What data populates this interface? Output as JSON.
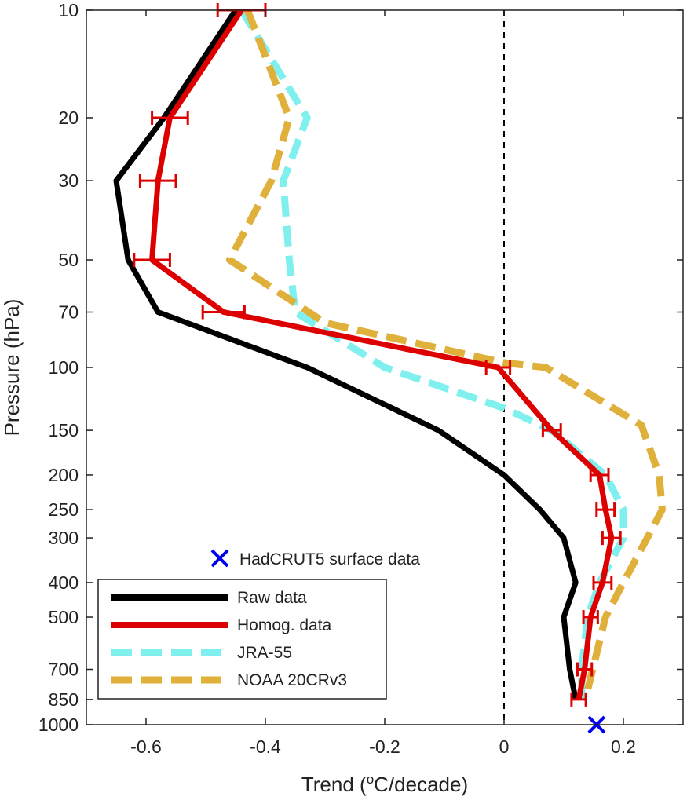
{
  "chart_data": {
    "type": "line",
    "xlabel_prefix": "Trend (",
    "xlabel_sup": "o",
    "xlabel_suffix": "C/decade)",
    "ylabel": "Pressure (hPa)",
    "xlim": [
      -0.7,
      0.3
    ],
    "ylim": [
      10,
      1000
    ],
    "y_scale": "log",
    "y_reversed": true,
    "x_ticks": [
      -0.6,
      -0.4,
      -0.2,
      0,
      0.2
    ],
    "x_tick_labels": [
      "-0.6",
      "-0.4",
      "-0.2",
      "0",
      "0.2"
    ],
    "y_ticks": [
      10,
      20,
      30,
      50,
      70,
      100,
      150,
      200,
      250,
      300,
      400,
      500,
      700,
      850,
      1000
    ],
    "y_tick_labels": [
      "10",
      "20",
      "30",
      "50",
      "70",
      "100",
      "150",
      "200",
      "250",
      "300",
      "400",
      "500",
      "700",
      "850",
      "1000"
    ],
    "zero_line": {
      "x": 0,
      "style": "dashed"
    },
    "grid": false,
    "legend_position": "bottom-left",
    "series": [
      {
        "name": "Raw data",
        "color": "#000000",
        "style": "solid",
        "points": [
          {
            "x": -0.45,
            "p": 10
          },
          {
            "x": -0.57,
            "p": 20
          },
          {
            "x": -0.65,
            "p": 30
          },
          {
            "x": -0.63,
            "p": 50
          },
          {
            "x": -0.58,
            "p": 70
          },
          {
            "x": -0.33,
            "p": 100
          },
          {
            "x": -0.11,
            "p": 150
          },
          {
            "x": 0.0,
            "p": 200
          },
          {
            "x": 0.06,
            "p": 250
          },
          {
            "x": 0.1,
            "p": 300
          },
          {
            "x": 0.12,
            "p": 400
          },
          {
            "x": 0.1,
            "p": 500
          },
          {
            "x": 0.11,
            "p": 700
          },
          {
            "x": 0.12,
            "p": 850
          }
        ]
      },
      {
        "name": "Homog. data",
        "color": "#dd0000",
        "style": "solid",
        "points": [
          {
            "x": -0.44,
            "p": 10,
            "err": 0.04
          },
          {
            "x": -0.56,
            "p": 20,
            "err": 0.03
          },
          {
            "x": -0.58,
            "p": 30,
            "err": 0.03
          },
          {
            "x": -0.59,
            "p": 50,
            "err": 0.03
          },
          {
            "x": -0.47,
            "p": 70,
            "err": 0.035
          },
          {
            "x": -0.01,
            "p": 100,
            "err": 0.02
          },
          {
            "x": 0.08,
            "p": 150,
            "err": 0.015
          },
          {
            "x": 0.16,
            "p": 200,
            "err": 0.015
          },
          {
            "x": 0.17,
            "p": 250,
            "err": 0.015
          },
          {
            "x": 0.18,
            "p": 300,
            "err": 0.015
          },
          {
            "x": 0.165,
            "p": 400,
            "err": 0.015
          },
          {
            "x": 0.145,
            "p": 500,
            "err": 0.012
          },
          {
            "x": 0.135,
            "p": 700,
            "err": 0.012
          },
          {
            "x": 0.125,
            "p": 850,
            "err": 0.012
          }
        ]
      },
      {
        "name": "JRA-55",
        "color": "#7ff0ee",
        "style": "dashed",
        "points": [
          {
            "x": -0.44,
            "p": 10
          },
          {
            "x": -0.33,
            "p": 20
          },
          {
            "x": -0.37,
            "p": 30
          },
          {
            "x": -0.36,
            "p": 50
          },
          {
            "x": -0.35,
            "p": 70
          },
          {
            "x": -0.2,
            "p": 100
          },
          {
            "x": 0.0,
            "p": 130
          },
          {
            "x": 0.08,
            "p": 150
          },
          {
            "x": 0.17,
            "p": 200
          },
          {
            "x": 0.2,
            "p": 250
          },
          {
            "x": 0.2,
            "p": 300
          },
          {
            "x": 0.16,
            "p": 400
          },
          {
            "x": 0.14,
            "p": 500
          },
          {
            "x": 0.13,
            "p": 700
          },
          {
            "x": 0.13,
            "p": 850
          }
        ]
      },
      {
        "name": "NOAA 20CRv3",
        "color": "#dfb03a",
        "style": "dashed",
        "points": [
          {
            "x": -0.43,
            "p": 10
          },
          {
            "x": -0.36,
            "p": 20
          },
          {
            "x": -0.39,
            "p": 30
          },
          {
            "x": -0.46,
            "p": 50
          },
          {
            "x": -0.3,
            "p": 75
          },
          {
            "x": 0.0,
            "p": 97
          },
          {
            "x": 0.07,
            "p": 100
          },
          {
            "x": 0.23,
            "p": 145
          },
          {
            "x": 0.26,
            "p": 200
          },
          {
            "x": 0.265,
            "p": 250
          },
          {
            "x": 0.24,
            "p": 300
          },
          {
            "x": 0.2,
            "p": 400
          },
          {
            "x": 0.17,
            "p": 500
          },
          {
            "x": 0.14,
            "p": 800
          }
        ]
      }
    ],
    "markers": [
      {
        "name": "HadCRUT5 surface data",
        "color": "#0000ee",
        "symbol": "x",
        "x": 0.155,
        "p": 1000
      }
    ]
  }
}
